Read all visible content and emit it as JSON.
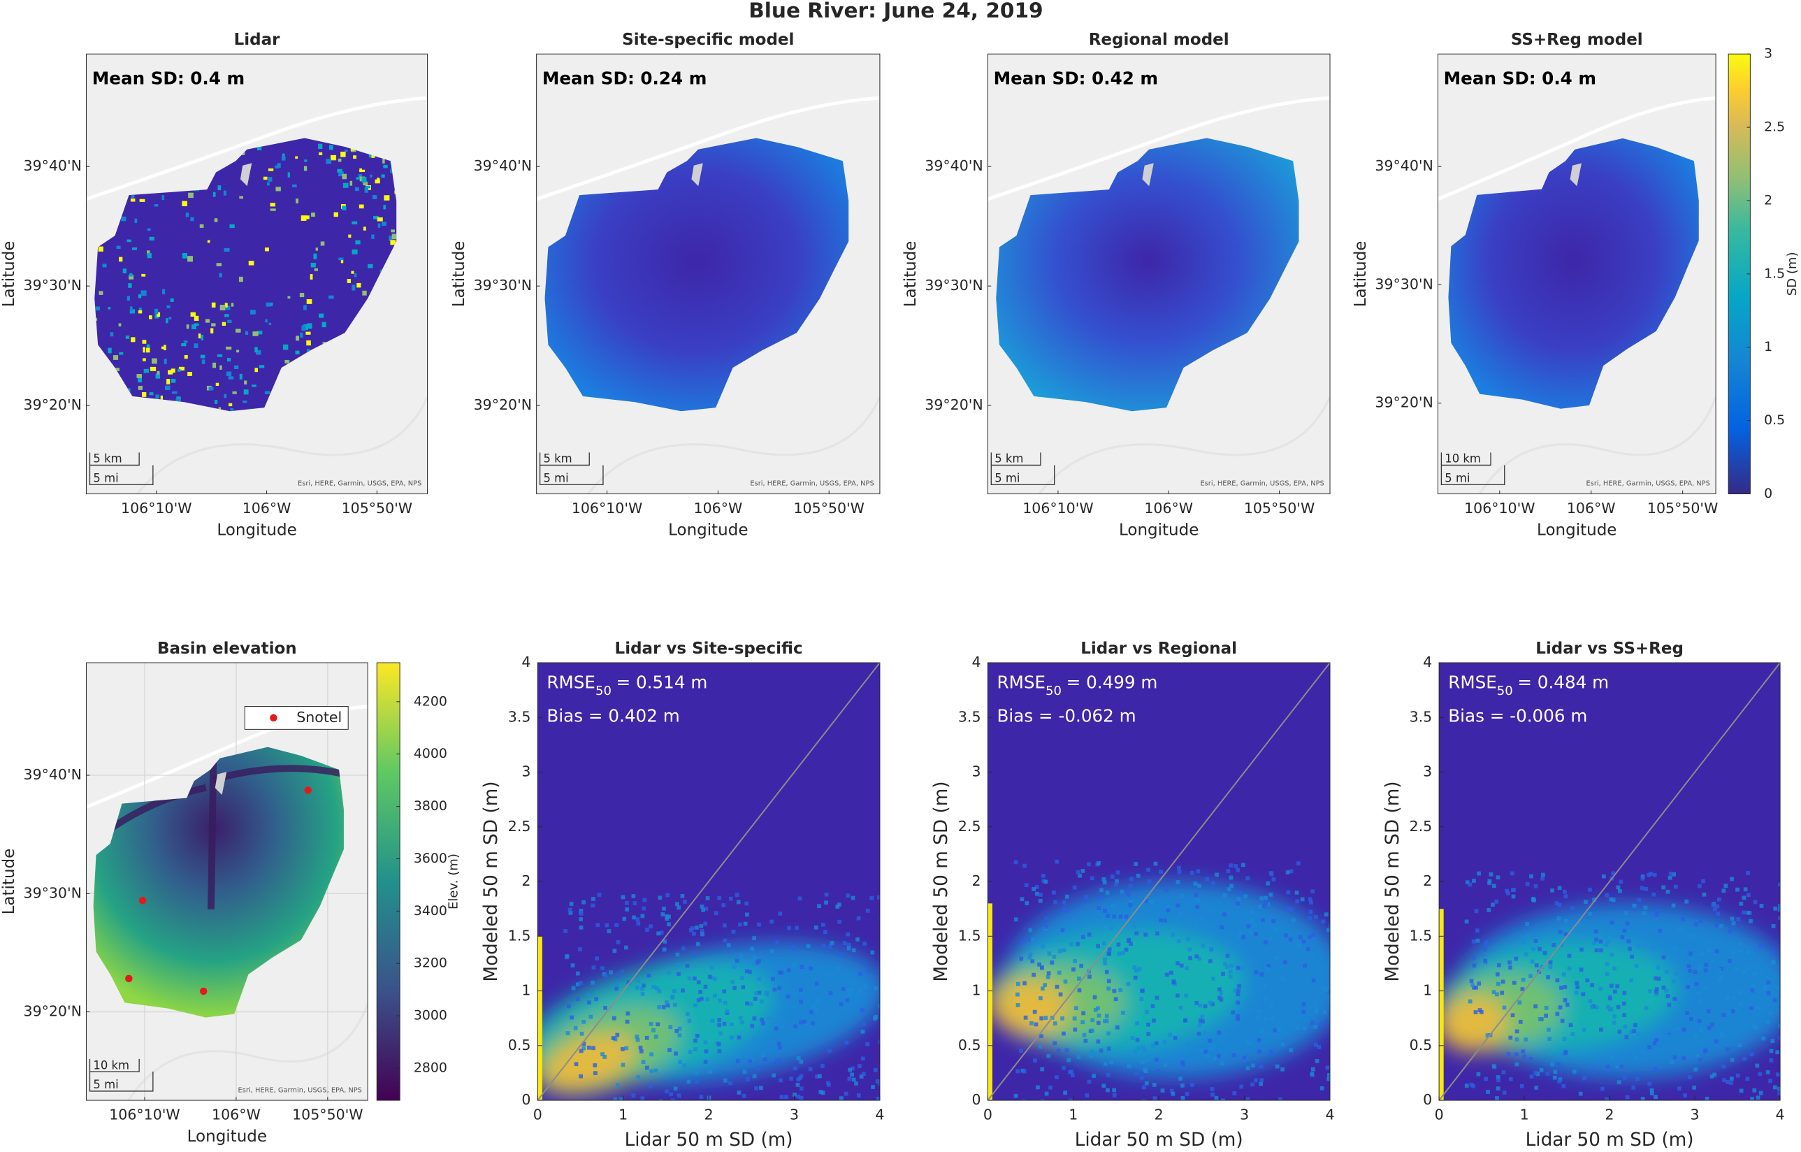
{
  "figure_title": "Blue River: June 24, 2019",
  "chart_data": [
    {
      "type": "map",
      "title": "Lidar",
      "annotation": "Mean SD: 0.4 m",
      "xlabel": "Longitude",
      "ylabel": "Latitude",
      "xlim": [
        -106.2726,
        -105.757
      ],
      "ylim": [
        39.21,
        39.8237
      ],
      "xticks": [
        {
          "value": -106.1667,
          "label": "106°10'W"
        },
        {
          "value": -106.0,
          "label": "106°W"
        },
        {
          "value": -105.8333,
          "label": "105°50'W"
        }
      ],
      "yticks": [
        {
          "value": 39.3333,
          "label": "39°20'N"
        },
        {
          "value": 39.5,
          "label": "39°30'N"
        },
        {
          "value": 39.6667,
          "label": "39°40'N"
        }
      ],
      "scale_km": "5 km",
      "scale_mi": "5 mi",
      "attribution": "Esri, HERE, Garmin, USGS, EPA, NPS"
    },
    {
      "type": "map",
      "title": "Site-specific model",
      "annotation": "Mean SD: 0.24 m",
      "xlabel": "Longitude",
      "ylabel": "Latitude",
      "xlim": [
        -106.2726,
        -105.757
      ],
      "ylim": [
        39.21,
        39.8237
      ],
      "xticks": [
        {
          "value": -106.1667,
          "label": "106°10'W"
        },
        {
          "value": -106.0,
          "label": "106°W"
        },
        {
          "value": -105.8333,
          "label": "105°50'W"
        }
      ],
      "yticks": [
        {
          "value": 39.3333,
          "label": "39°20'N"
        },
        {
          "value": 39.5,
          "label": "39°30'N"
        },
        {
          "value": 39.6667,
          "label": "39°40'N"
        }
      ],
      "scale_km": "5 km",
      "scale_mi": "5 mi",
      "attribution": "Esri, HERE, Garmin, USGS, EPA, NPS"
    },
    {
      "type": "map",
      "title": "Regional model",
      "annotation": "Mean SD: 0.42 m",
      "xlabel": "Longitude",
      "ylabel": "Latitude",
      "xlim": [
        -106.2726,
        -105.757
      ],
      "ylim": [
        39.21,
        39.8237
      ],
      "xticks": [
        {
          "value": -106.1667,
          "label": "106°10'W"
        },
        {
          "value": -106.0,
          "label": "106°W"
        },
        {
          "value": -105.8333,
          "label": "105°50'W"
        }
      ],
      "yticks": [
        {
          "value": 39.3333,
          "label": "39°20'N"
        },
        {
          "value": 39.5,
          "label": "39°30'N"
        },
        {
          "value": 39.6667,
          "label": "39°40'N"
        }
      ],
      "scale_km": "5 km",
      "scale_mi": "5 mi",
      "attribution": "Esri, HERE, Garmin, USGS, EPA, NPS"
    },
    {
      "type": "map",
      "title": "SS+Reg model",
      "annotation": "Mean SD: 0.4 m",
      "xlabel": "Longitude",
      "ylabel": "Latitude",
      "xlim": [
        -106.2792,
        -105.7729
      ],
      "ylim": [
        39.2055,
        39.8252
      ],
      "xticks": [
        {
          "value": -106.1667,
          "label": "106°10'W"
        },
        {
          "value": -106.0,
          "label": "106°W"
        },
        {
          "value": -105.8333,
          "label": "105°50'W"
        }
      ],
      "yticks": [
        {
          "value": 39.3333,
          "label": "39°20'N"
        },
        {
          "value": 39.5,
          "label": "39°30'N"
        },
        {
          "value": 39.6667,
          "label": "39°40'N"
        }
      ],
      "scale_km": "10 km",
      "scale_mi": "5 mi",
      "attribution": "Esri, HERE, Garmin, USGS, EPA, NPS"
    },
    {
      "type": "colorbar",
      "label": "SD (m)",
      "ylim": [
        0,
        3
      ],
      "yticks": [
        0,
        0.5,
        1,
        1.5,
        2,
        2.5,
        3
      ]
    },
    {
      "type": "map",
      "title": "Basin elevation",
      "xlabel": "Longitude",
      "ylabel": "Latitude",
      "grid": true,
      "xlim": [
        -106.2729,
        -105.7604
      ],
      "ylim": [
        39.2087,
        39.8252
      ],
      "xticks": [
        {
          "value": -106.1667,
          "label": "106°10'W"
        },
        {
          "value": -106.0,
          "label": "106°W"
        },
        {
          "value": -105.8333,
          "label": "105°50'W"
        }
      ],
      "yticks": [
        {
          "value": 39.3333,
          "label": "39°20'N"
        },
        {
          "value": 39.5,
          "label": "39°30'N"
        },
        {
          "value": 39.6667,
          "label": "39°40'N"
        }
      ],
      "scale_km": "10 km",
      "scale_mi": "5 mi",
      "attribution": "Esri, HERE, Garmin, USGS, EPA, NPS",
      "points": {
        "name": "Snotel",
        "color": "#e31a1c",
        "lon": [
          -106.1704,
          -106.1955,
          -106.0595,
          -105.8692
        ],
        "lat": [
          39.4903,
          39.3802,
          39.3624,
          39.6456
        ]
      }
    },
    {
      "type": "colorbar",
      "label": "Elev. (m)",
      "ylim": [
        2677,
        4349
      ],
      "yticks": [
        2800,
        3000,
        3200,
        3400,
        3600,
        3800,
        4000,
        4200
      ]
    },
    {
      "type": "heatmap",
      "title": "Lidar vs Site-specific",
      "rmse_label": "RMSE",
      "rmse_sub": "50",
      "rmse_value": "= 0.514 m",
      "bias": "Bias = 0.402 m",
      "xlabel": "Lidar 50 m SD (m)",
      "ylabel": "Modeled 50 m SD (m)",
      "xlim": [
        0,
        4
      ],
      "ylim": [
        0,
        4
      ],
      "xticks": [
        0,
        1,
        2,
        3,
        4
      ],
      "yticks": [
        0,
        0.5,
        1,
        1.5,
        2,
        2.5,
        3,
        3.5,
        4
      ]
    },
    {
      "type": "heatmap",
      "title": "Lidar vs Regional",
      "rmse_label": "RMSE",
      "rmse_sub": "50",
      "rmse_value": "= 0.499 m",
      "bias": "Bias = -0.062 m",
      "xlabel": "Lidar 50 m SD (m)",
      "ylabel": "Modeled 50 m SD (m)",
      "xlim": [
        0,
        4
      ],
      "ylim": [
        0,
        4
      ],
      "xticks": [
        0,
        1,
        2,
        3,
        4
      ],
      "yticks": [
        0,
        0.5,
        1,
        1.5,
        2,
        2.5,
        3,
        3.5,
        4
      ]
    },
    {
      "type": "heatmap",
      "title": "Lidar vs SS+Reg",
      "rmse_label": "RMSE",
      "rmse_sub": "50",
      "rmse_value": "= 0.484 m",
      "bias": "Bias = -0.006 m",
      "xlabel": "Lidar 50 m SD (m)",
      "ylabel": "Modeled 50 m SD (m)",
      "xlim": [
        0,
        4
      ],
      "ylim": [
        0,
        4
      ],
      "xticks": [
        0,
        1,
        2,
        3,
        4
      ],
      "yticks": [
        0,
        0.5,
        1,
        1.5,
        2,
        2.5,
        3,
        3.5,
        4
      ]
    }
  ]
}
